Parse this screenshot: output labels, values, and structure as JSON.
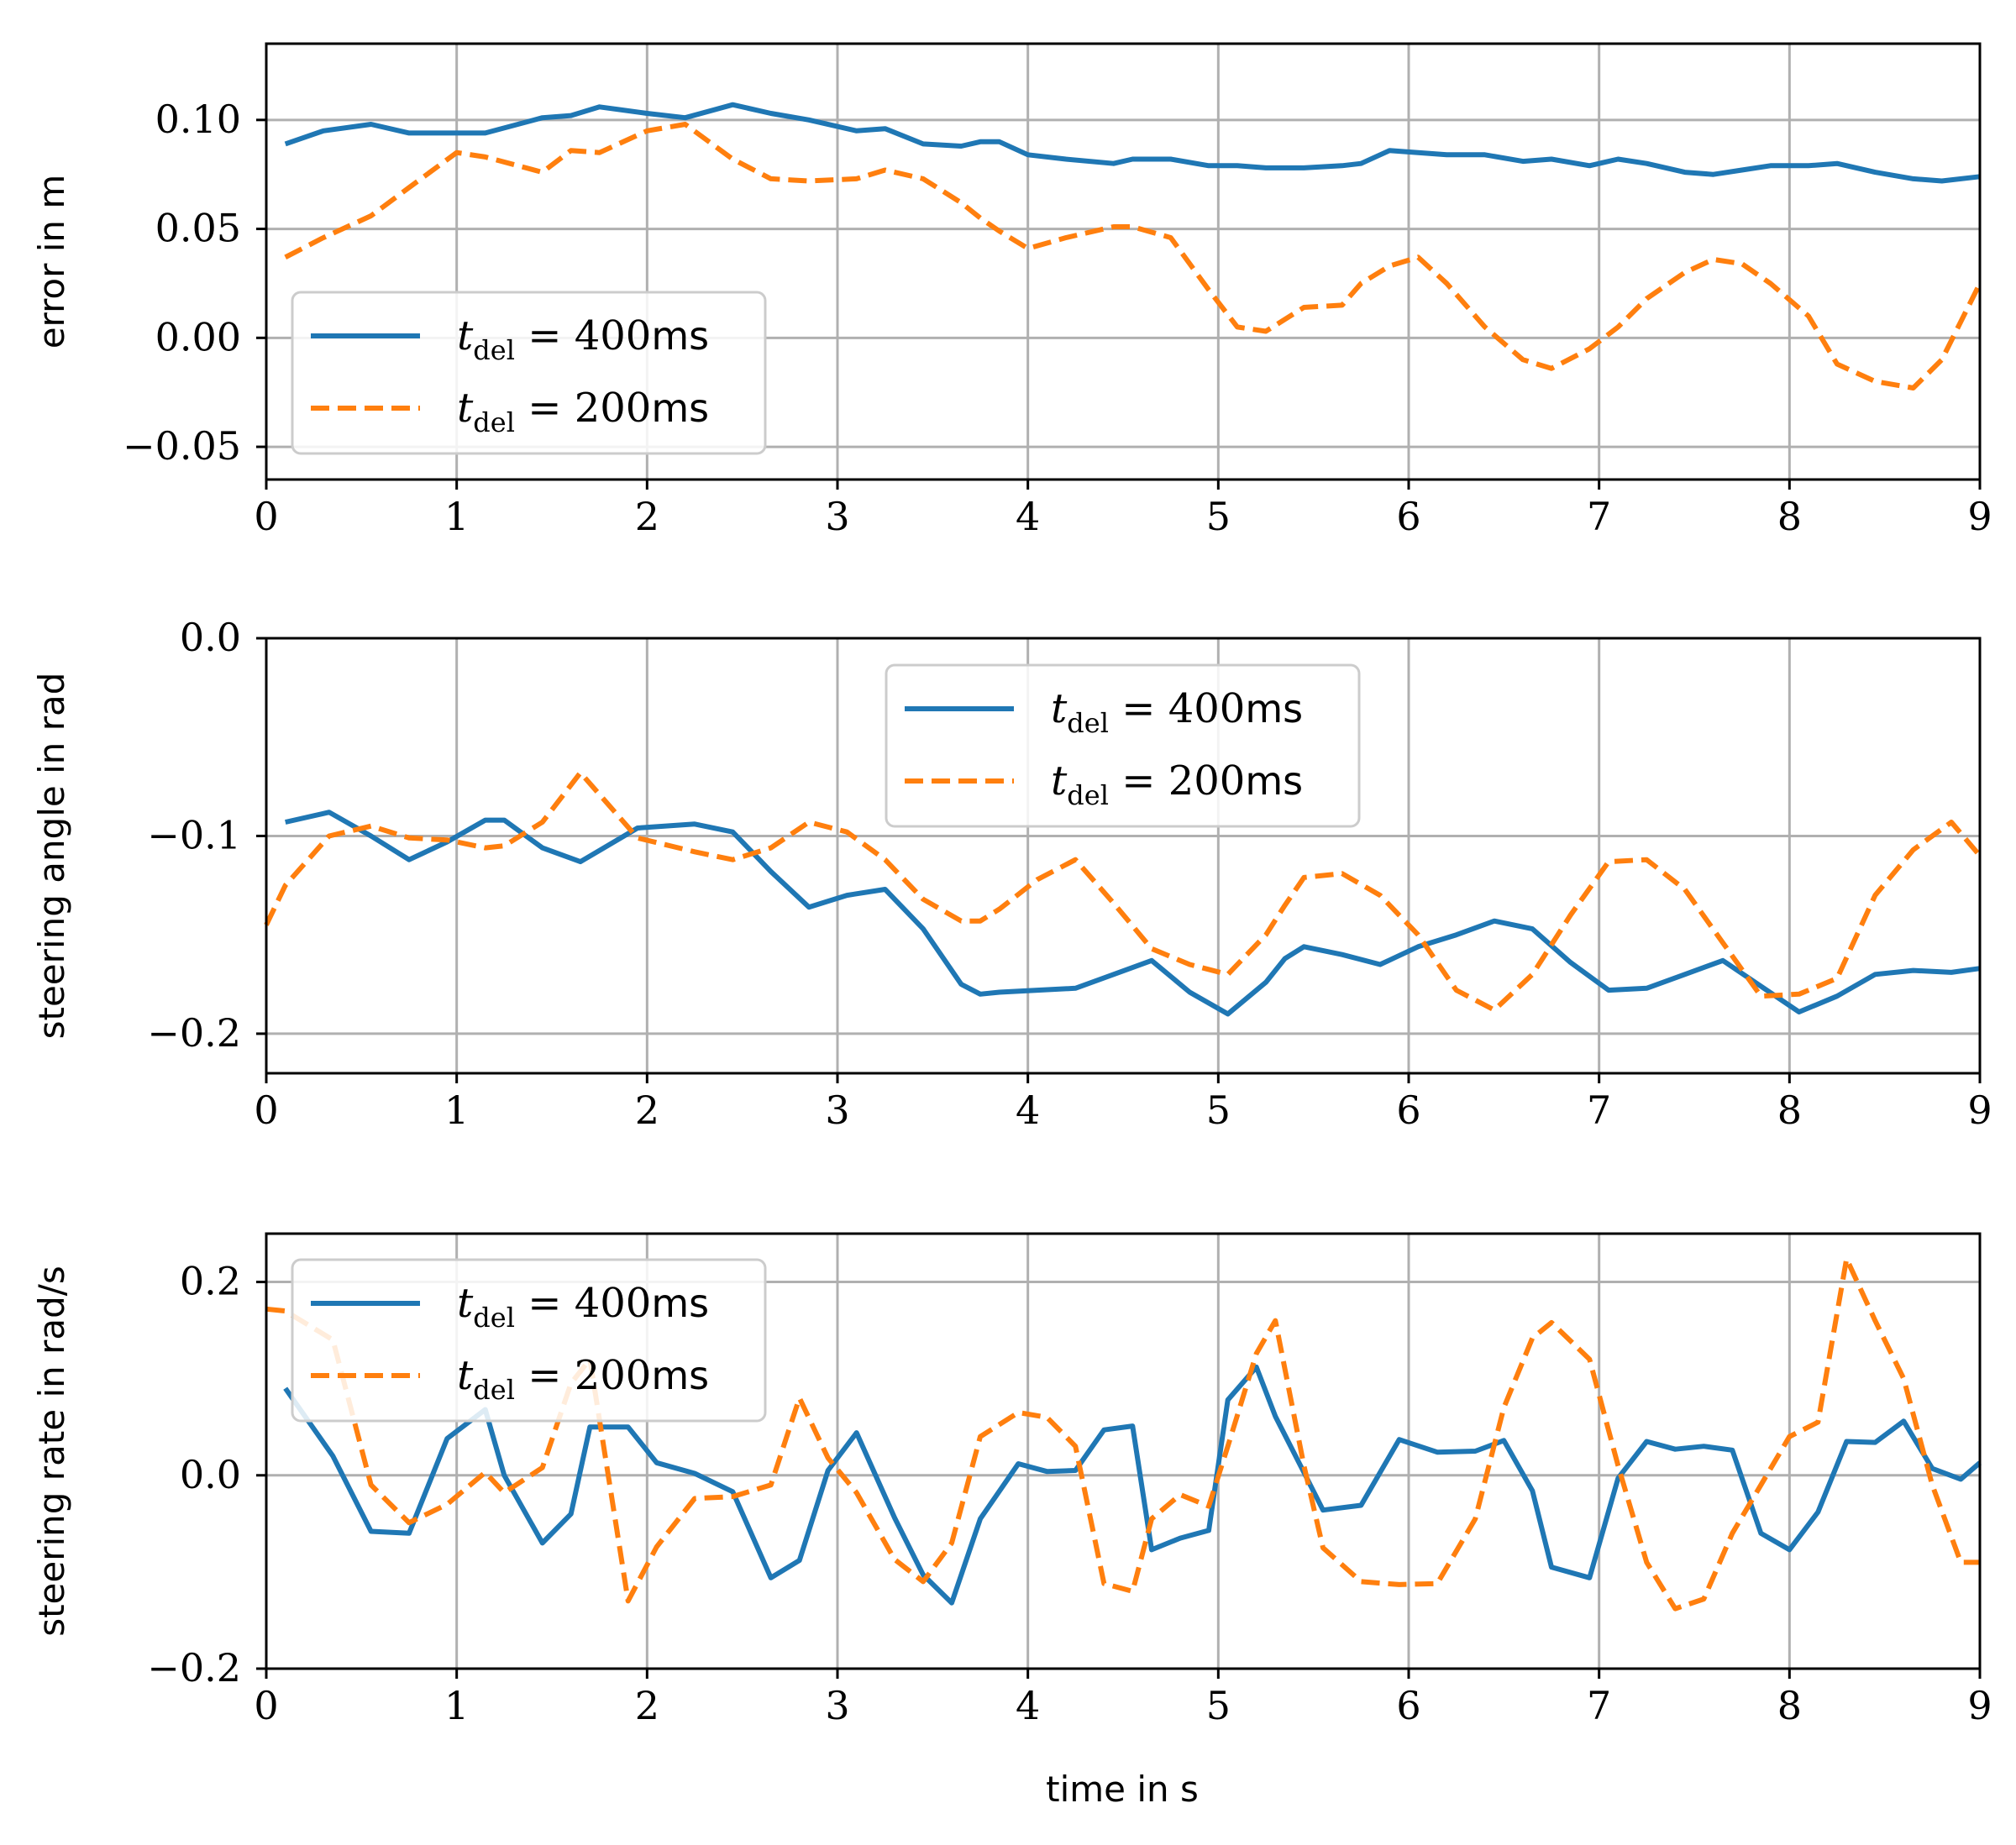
{
  "colors": {
    "series1": "#1f77b4",
    "series2": "#ff7f0e",
    "grid": "#b0b0b0",
    "axes": "#000000"
  },
  "xlabel": "time in s",
  "legend_entries": [
    {
      "symbol": "t",
      "subscript": "del",
      "value": " = 400",
      "unit": "ms"
    },
    {
      "symbol": "t",
      "subscript": "del",
      "value": " = 200",
      "unit": "ms"
    }
  ],
  "chart_data": [
    {
      "type": "line",
      "title": "",
      "xlabel": "",
      "ylabel": "error in m",
      "xlim": [
        0,
        9
      ],
      "ylim": [
        -0.065,
        0.135
      ],
      "xticks": [
        0,
        1,
        2,
        3,
        4,
        5,
        6,
        7,
        8,
        9
      ],
      "yticks": [
        -0.05,
        0.0,
        0.05,
        0.1
      ],
      "ytick_labels": [
        "−0.05",
        "0.00",
        "0.05",
        "0.10"
      ],
      "grid": true,
      "legend_position": "lower-left",
      "x": [
        0.1,
        0.3,
        0.55,
        0.75,
        1.0,
        1.15,
        1.45,
        1.6,
        1.75,
        2.0,
        2.2,
        2.45,
        2.65,
        2.85,
        3.1,
        3.25,
        3.45,
        3.65,
        3.75,
        3.85,
        4.0,
        4.2,
        4.45,
        4.55,
        4.75,
        4.95,
        5.1,
        5.25,
        5.45,
        5.65,
        5.75,
        5.9,
        6.05,
        6.2,
        6.4,
        6.6,
        6.75,
        6.95,
        7.1,
        7.25,
        7.45,
        7.6,
        7.75,
        7.9,
        8.1,
        8.25,
        8.45,
        8.65,
        8.8,
        9.0
      ],
      "series": [
        {
          "name": "t_del = 400ms",
          "style": "solid",
          "values": [
            0.089,
            0.095,
            0.098,
            0.094,
            0.094,
            0.094,
            0.101,
            0.102,
            0.106,
            0.103,
            0.101,
            0.107,
            0.103,
            0.1,
            0.095,
            0.096,
            0.089,
            0.088,
            0.09,
            0.09,
            0.084,
            0.082,
            0.08,
            0.082,
            0.082,
            0.079,
            0.079,
            0.078,
            0.078,
            0.079,
            0.08,
            0.086,
            0.085,
            0.084,
            0.084,
            0.081,
            0.082,
            0.079,
            0.082,
            0.08,
            0.076,
            0.075,
            0.077,
            0.079,
            0.079,
            0.08,
            0.076,
            0.073,
            0.072,
            0.074
          ]
        },
        {
          "name": "t_del = 200ms",
          "style": "dashed",
          "values": [
            0.037,
            0.046,
            0.056,
            0.069,
            0.085,
            0.083,
            0.076,
            0.086,
            0.085,
            0.095,
            0.098,
            0.082,
            0.073,
            0.072,
            0.073,
            0.077,
            0.073,
            0.062,
            0.055,
            0.049,
            0.041,
            0.046,
            0.051,
            0.051,
            0.046,
            0.022,
            0.005,
            0.003,
            0.014,
            0.015,
            0.025,
            0.033,
            0.037,
            0.025,
            0.005,
            -0.01,
            -0.014,
            -0.005,
            0.005,
            0.018,
            0.03,
            0.036,
            0.034,
            0.025,
            0.01,
            -0.012,
            -0.02,
            -0.023,
            -0.01,
            0.025
          ]
        }
      ]
    },
    {
      "type": "line",
      "title": "",
      "xlabel": "",
      "ylabel": "steering angle in rad",
      "xlim": [
        0,
        9
      ],
      "ylim": [
        -0.22,
        0.0
      ],
      "xticks": [
        0,
        1,
        2,
        3,
        4,
        5,
        6,
        7,
        8,
        9
      ],
      "yticks": [
        -0.2,
        -0.1,
        0.0
      ],
      "ytick_labels": [
        "−0.2",
        "−0.1",
        "0.0"
      ],
      "grid": true,
      "legend_position": "upper-center",
      "x": [
        0.0,
        0.1,
        0.33,
        0.55,
        0.75,
        0.95,
        1.15,
        1.25,
        1.45,
        1.65,
        1.95,
        2.25,
        2.45,
        2.65,
        2.85,
        3.05,
        3.25,
        3.45,
        3.65,
        3.75,
        3.85,
        4.05,
        4.25,
        4.45,
        4.65,
        4.85,
        5.05,
        5.25,
        5.35,
        5.45,
        5.65,
        5.85,
        6.05,
        6.25,
        6.45,
        6.65,
        6.85,
        7.05,
        7.25,
        7.45,
        7.65,
        7.85,
        8.05,
        8.25,
        8.45,
        8.65,
        8.85,
        9.0
      ],
      "series": [
        {
          "name": "t_del = 400ms",
          "style": "solid",
          "values": [
            null,
            -0.093,
            -0.088,
            -0.1,
            -0.112,
            -0.103,
            -0.092,
            -0.092,
            -0.106,
            -0.113,
            -0.096,
            -0.094,
            -0.098,
            -0.118,
            -0.136,
            -0.13,
            -0.127,
            -0.147,
            -0.175,
            -0.18,
            -0.179,
            -0.178,
            -0.177,
            -0.17,
            -0.163,
            -0.179,
            -0.19,
            -0.174,
            -0.162,
            -0.156,
            -0.16,
            -0.165,
            -0.156,
            -0.15,
            -0.143,
            -0.147,
            -0.164,
            -0.178,
            -0.177,
            -0.17,
            -0.163,
            -0.176,
            -0.189,
            -0.181,
            -0.17,
            -0.168,
            -0.169,
            -0.167
          ]
        },
        {
          "name": "t_del = 200ms",
          "style": "dashed",
          "values": [
            -0.145,
            -0.125,
            -0.1,
            -0.095,
            -0.101,
            -0.102,
            -0.106,
            -0.105,
            -0.093,
            -0.068,
            -0.101,
            -0.108,
            -0.112,
            -0.106,
            -0.093,
            -0.098,
            -0.112,
            -0.132,
            -0.143,
            -0.143,
            -0.137,
            -0.122,
            -0.112,
            -0.134,
            -0.157,
            -0.165,
            -0.17,
            -0.15,
            -0.135,
            -0.121,
            -0.119,
            -0.13,
            -0.15,
            -0.178,
            -0.188,
            -0.17,
            -0.14,
            -0.113,
            -0.112,
            -0.127,
            -0.154,
            -0.181,
            -0.18,
            -0.172,
            -0.13,
            -0.107,
            -0.093,
            -0.11
          ]
        }
      ]
    },
    {
      "type": "line",
      "title": "",
      "xlabel": "time in s",
      "ylabel": "steering rate in rad/s",
      "xlim": [
        0,
        9
      ],
      "ylim": [
        -0.2,
        0.25
      ],
      "xticks": [
        0,
        1,
        2,
        3,
        4,
        5,
        6,
        7,
        8,
        9
      ],
      "yticks": [
        -0.2,
        0.0,
        0.2
      ],
      "ytick_labels": [
        "−0.2",
        "0.0",
        "0.2"
      ],
      "grid": true,
      "legend_position": "upper-left",
      "x": [
        0.0,
        0.1,
        0.35,
        0.55,
        0.75,
        0.95,
        1.15,
        1.25,
        1.45,
        1.6,
        1.7,
        1.9,
        2.05,
        2.25,
        2.45,
        2.65,
        2.8,
        2.95,
        3.1,
        3.3,
        3.45,
        3.6,
        3.75,
        3.95,
        4.1,
        4.25,
        4.4,
        4.55,
        4.65,
        4.8,
        4.95,
        5.05,
        5.2,
        5.3,
        5.45,
        5.55,
        5.75,
        5.95,
        6.15,
        6.35,
        6.5,
        6.65,
        6.75,
        6.95,
        7.1,
        7.25,
        7.4,
        7.55,
        7.7,
        7.85,
        8.0,
        8.15,
        8.3,
        8.45,
        8.6,
        8.75,
        8.9,
        9.0
      ],
      "series": [
        {
          "name": "t_del = 400ms",
          "style": "solid",
          "values": [
            null,
            0.09,
            0.02,
            -0.058,
            -0.06,
            0.038,
            0.068,
            0.0,
            -0.07,
            -0.04,
            0.05,
            0.05,
            0.013,
            0.002,
            -0.017,
            -0.106,
            -0.088,
            0.005,
            0.044,
            -0.044,
            -0.103,
            -0.132,
            -0.045,
            0.012,
            0.004,
            0.005,
            0.047,
            0.051,
            -0.077,
            -0.065,
            -0.057,
            0.078,
            0.112,
            0.061,
            0.003,
            -0.036,
            -0.031,
            0.037,
            0.024,
            0.025,
            0.036,
            -0.016,
            -0.095,
            -0.106,
            -0.003,
            0.035,
            0.027,
            0.03,
            0.026,
            -0.06,
            -0.077,
            -0.038,
            0.035,
            0.034,
            0.056,
            0.007,
            -0.004,
            0.013
          ]
        },
        {
          "name": "t_del = 200ms",
          "style": "dashed",
          "values": [
            0.172,
            0.17,
            0.14,
            -0.01,
            -0.049,
            -0.03,
            0.003,
            -0.018,
            0.008,
            0.095,
            0.12,
            -0.13,
            -0.074,
            -0.024,
            -0.022,
            -0.01,
            0.08,
            0.018,
            -0.018,
            -0.087,
            -0.11,
            -0.07,
            0.04,
            0.065,
            0.06,
            0.03,
            -0.112,
            -0.12,
            -0.045,
            -0.02,
            -0.032,
            0.03,
            0.126,
            0.16,
            0.01,
            -0.075,
            -0.11,
            -0.113,
            -0.112,
            -0.045,
            0.07,
            0.142,
            0.158,
            0.12,
            0.01,
            -0.09,
            -0.138,
            -0.128,
            -0.06,
            -0.01,
            0.04,
            0.055,
            0.224,
            0.16,
            0.1,
            -0.01,
            -0.09,
            -0.09
          ]
        }
      ]
    }
  ]
}
